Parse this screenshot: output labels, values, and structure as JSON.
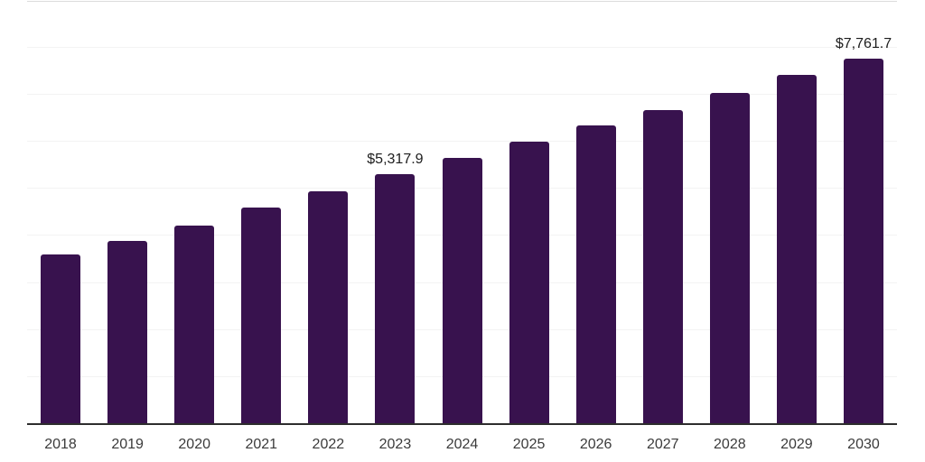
{
  "chart_data": {
    "type": "bar",
    "title": "",
    "xlabel": "",
    "ylabel": "",
    "categories": [
      "2018",
      "2019",
      "2020",
      "2021",
      "2022",
      "2023",
      "2024",
      "2025",
      "2026",
      "2027",
      "2028",
      "2029",
      "2030"
    ],
    "values": [
      3610,
      3900,
      4220,
      4595,
      4950,
      5317.9,
      5660,
      6010,
      6340,
      6680,
      7030,
      7415,
      7761.7
    ],
    "value_labels": [
      {
        "category": "2023",
        "text": "$5,317.9"
      },
      {
        "category": "2030",
        "text": "$7,761.7"
      }
    ],
    "ylim": [
      0,
      9000
    ],
    "gridline_step": 1000,
    "y_tick_labels_visible": false,
    "legend": "none",
    "grid": "horizontal",
    "colors": {
      "bar": "#38124E",
      "axis": "#2d2d2d",
      "gridline": "#f3f3f3",
      "top_gridline": "#dcdcdc",
      "value_label_text": "#1d1d1d",
      "x_tick_text": "#3b3b3b",
      "background": "#ffffff"
    }
  }
}
